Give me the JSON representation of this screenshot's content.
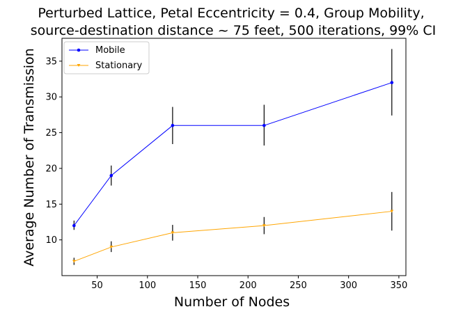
{
  "chart_data": {
    "type": "line",
    "title_line1": "Perturbed Lattice, Petal Eccentricity = 0.4, Group Mobility,",
    "title_line2": "source-destination distance ~ 75 feet, 500 iterations, 99% CI",
    "xlabel": "Number of Nodes",
    "ylabel": "Average Number of Transmission",
    "xlim": [
      15,
      357
    ],
    "ylim": [
      5.0,
      38.2
    ],
    "xticks": [
      50,
      100,
      150,
      200,
      250,
      300,
      350
    ],
    "yticks": [
      10,
      15,
      20,
      25,
      30,
      35
    ],
    "grid": false,
    "legend_position": "top-left",
    "series": [
      {
        "name": "Mobile",
        "color": "#0000ff",
        "marker": "circle",
        "x": [
          27,
          64,
          125,
          216,
          343
        ],
        "y": [
          12,
          19,
          26,
          26,
          32
        ],
        "err_low": [
          11.4,
          17.6,
          23.4,
          23.2,
          27.4
        ],
        "err_high": [
          12.7,
          20.4,
          28.6,
          28.9,
          36.7
        ]
      },
      {
        "name": "Stationary",
        "color": "#ffa500",
        "marker": "triangle-down",
        "x": [
          27,
          64,
          125,
          216,
          343
        ],
        "y": [
          7,
          9,
          11,
          12,
          14
        ],
        "err_low": [
          6.5,
          8.3,
          9.9,
          10.8,
          11.3
        ],
        "err_high": [
          7.5,
          9.8,
          12.1,
          13.2,
          16.7
        ]
      }
    ]
  }
}
